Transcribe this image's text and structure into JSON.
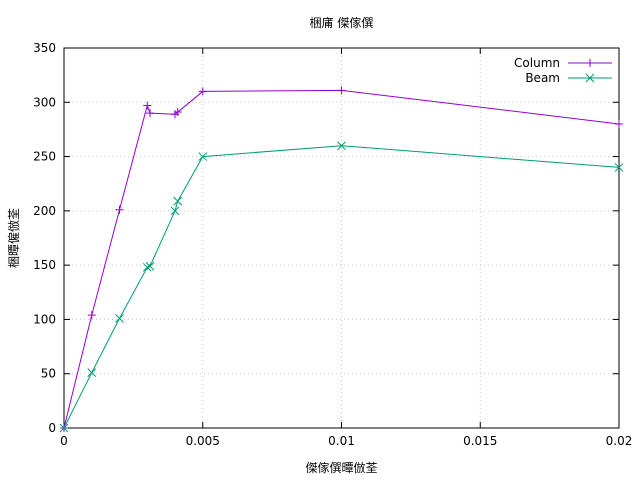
{
  "chart_data": {
    "type": "line",
    "title": "梱庯 傑傢僎",
    "xlabel": "傑傢僎曋倣荃",
    "ylabel": "梱曋僱倣荃",
    "xlim": [
      0,
      0.02
    ],
    "ylim": [
      0,
      350
    ],
    "grid": true,
    "legend_position": "top-right",
    "x_ticks": [
      "0",
      "0.005",
      "0.01",
      "0.015",
      "0.02"
    ],
    "x_tick_values": [
      0,
      0.005,
      0.01,
      0.015,
      0.02
    ],
    "y_ticks": [
      "0",
      "50",
      "100",
      "150",
      "200",
      "250",
      "300",
      "350"
    ],
    "y_tick_values": [
      0,
      50,
      100,
      150,
      200,
      250,
      300,
      350
    ],
    "series": [
      {
        "name": "Column",
        "color": "#9400d3",
        "marker": "plus",
        "x": [
          0,
          0.001,
          0.002,
          0.003,
          0.0031,
          0.004,
          0.0041,
          0.005,
          0.01,
          0.02
        ],
        "y": [
          0,
          104,
          201,
          297,
          290,
          289,
          291,
          310,
          311,
          280
        ]
      },
      {
        "name": "Beam",
        "color": "#009e73",
        "marker": "cross",
        "x": [
          0,
          0.001,
          0.002,
          0.003,
          0.0031,
          0.004,
          0.0041,
          0.005,
          0.01,
          0.02
        ],
        "y": [
          0,
          51,
          101,
          148,
          149,
          200,
          209,
          250,
          260,
          240
        ]
      }
    ]
  }
}
